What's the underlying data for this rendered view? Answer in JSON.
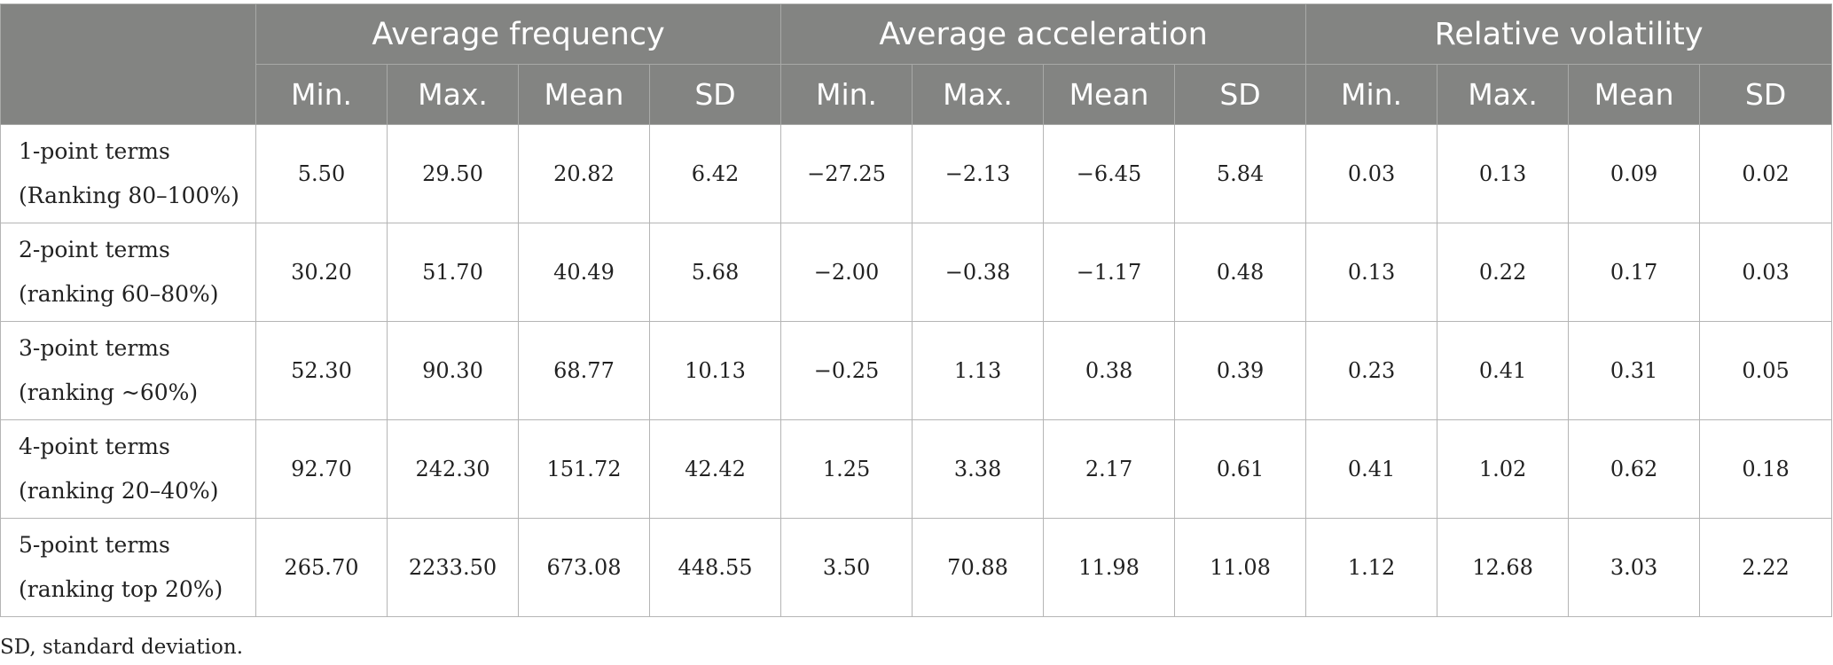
{
  "table": {
    "groups": [
      "Average frequency",
      "Average acceleration",
      "Relative volatility"
    ],
    "subheaders": [
      "Min.",
      "Max.",
      "Mean",
      "SD",
      "Min.",
      "Max.",
      "Mean",
      "SD",
      "Min.",
      "Max.",
      "Mean",
      "SD"
    ],
    "rows": [
      {
        "label_line1": "1-point terms",
        "label_line2": "(Ranking 80–100%)",
        "values": [
          "5.50",
          "29.50",
          "20.82",
          "6.42",
          "−27.25",
          "−2.13",
          "−6.45",
          "5.84",
          "0.03",
          "0.13",
          "0.09",
          "0.02"
        ]
      },
      {
        "label_line1": "2-point terms",
        "label_line2": "(ranking 60–80%)",
        "values": [
          "30.20",
          "51.70",
          "40.49",
          "5.68",
          "−2.00",
          "−0.38",
          "−1.17",
          "0.48",
          "0.13",
          "0.22",
          "0.17",
          "0.03"
        ]
      },
      {
        "label_line1": "3-point terms",
        "label_line2": "(ranking ~60%)",
        "values": [
          "52.30",
          "90.30",
          "68.77",
          "10.13",
          "−0.25",
          "1.13",
          "0.38",
          "0.39",
          "0.23",
          "0.41",
          "0.31",
          "0.05"
        ]
      },
      {
        "label_line1": "4-point terms",
        "label_line2": "(ranking 20–40%)",
        "values": [
          "92.70",
          "242.30",
          "151.72",
          "42.42",
          "1.25",
          "3.38",
          "2.17",
          "0.61",
          "0.41",
          "1.02",
          "0.62",
          "0.18"
        ]
      },
      {
        "label_line1": "5-point terms",
        "label_line2": "(ranking top 20%)",
        "values": [
          "265.70",
          "2233.50",
          "673.08",
          "448.55",
          "3.50",
          "70.88",
          "11.98",
          "11.08",
          "1.12",
          "12.68",
          "3.03",
          "2.22"
        ]
      }
    ]
  },
  "footnote": "SD, standard deviation."
}
